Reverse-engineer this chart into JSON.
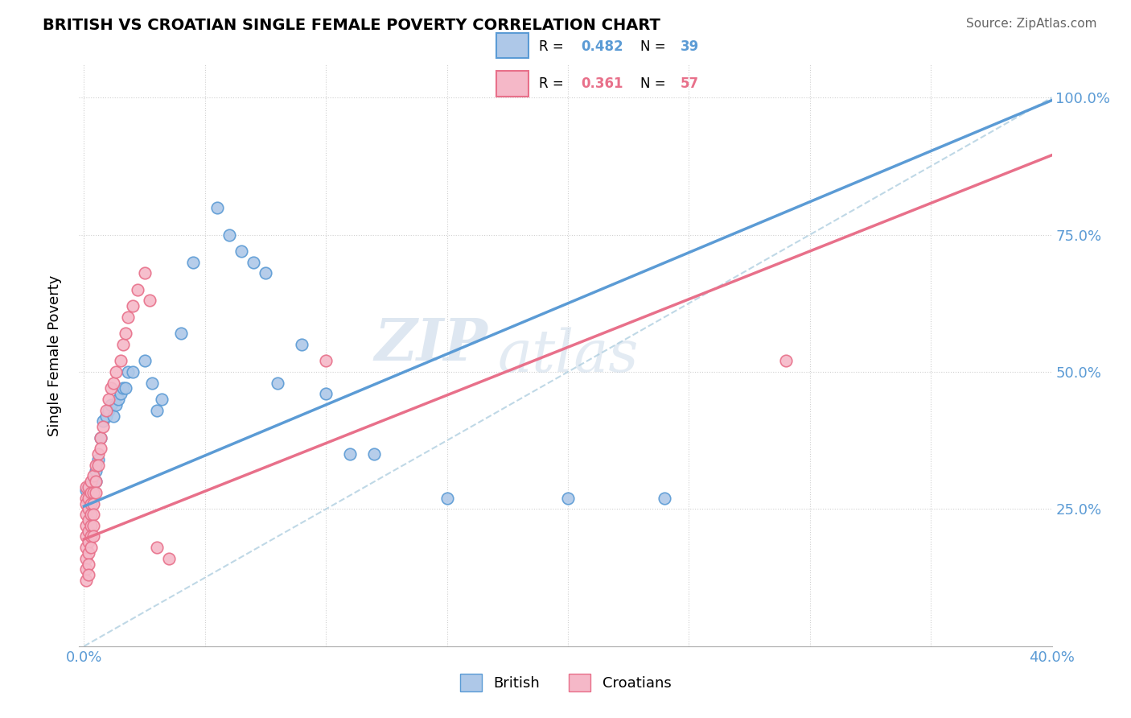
{
  "title": "BRITISH VS CROATIAN SINGLE FEMALE POVERTY CORRELATION CHART",
  "source": "Source: ZipAtlas.com",
  "ylabel": "Single Female Poverty",
  "british_color": "#aec8e8",
  "croatian_color": "#f5b8c8",
  "british_line_color": "#5b9bd5",
  "croatian_line_color": "#e8708a",
  "diagonal_color": "#b0cfe0",
  "watermark_zip": "ZIP",
  "watermark_atlas": "atlas",
  "british_r": "0.482",
  "british_n": "39",
  "croatian_r": "0.361",
  "croatian_n": "57",
  "british_points": [
    [
      0.001,
      0.285
    ],
    [
      0.002,
      0.285
    ],
    [
      0.003,
      0.29
    ],
    [
      0.004,
      0.3
    ],
    [
      0.005,
      0.3
    ],
    [
      0.005,
      0.32
    ],
    [
      0.006,
      0.34
    ],
    [
      0.007,
      0.38
    ],
    [
      0.008,
      0.41
    ],
    [
      0.009,
      0.42
    ],
    [
      0.01,
      0.43
    ],
    [
      0.011,
      0.44
    ],
    [
      0.012,
      0.42
    ],
    [
      0.013,
      0.44
    ],
    [
      0.014,
      0.45
    ],
    [
      0.015,
      0.46
    ],
    [
      0.016,
      0.47
    ],
    [
      0.017,
      0.47
    ],
    [
      0.018,
      0.5
    ],
    [
      0.02,
      0.5
    ],
    [
      0.025,
      0.52
    ],
    [
      0.028,
      0.48
    ],
    [
      0.03,
      0.43
    ],
    [
      0.032,
      0.45
    ],
    [
      0.04,
      0.57
    ],
    [
      0.045,
      0.7
    ],
    [
      0.055,
      0.8
    ],
    [
      0.06,
      0.75
    ],
    [
      0.065,
      0.72
    ],
    [
      0.07,
      0.7
    ],
    [
      0.075,
      0.68
    ],
    [
      0.08,
      0.48
    ],
    [
      0.09,
      0.55
    ],
    [
      0.1,
      0.46
    ],
    [
      0.11,
      0.35
    ],
    [
      0.12,
      0.35
    ],
    [
      0.15,
      0.27
    ],
    [
      0.2,
      0.27
    ],
    [
      0.24,
      0.27
    ]
  ],
  "croatian_points": [
    [
      0.001,
      0.29
    ],
    [
      0.001,
      0.27
    ],
    [
      0.001,
      0.26
    ],
    [
      0.001,
      0.24
    ],
    [
      0.001,
      0.22
    ],
    [
      0.001,
      0.2
    ],
    [
      0.001,
      0.18
    ],
    [
      0.001,
      0.16
    ],
    [
      0.001,
      0.14
    ],
    [
      0.001,
      0.12
    ],
    [
      0.002,
      0.29
    ],
    [
      0.002,
      0.27
    ],
    [
      0.002,
      0.25
    ],
    [
      0.002,
      0.23
    ],
    [
      0.002,
      0.21
    ],
    [
      0.002,
      0.19
    ],
    [
      0.002,
      0.17
    ],
    [
      0.002,
      0.15
    ],
    [
      0.002,
      0.13
    ],
    [
      0.003,
      0.3
    ],
    [
      0.003,
      0.28
    ],
    [
      0.003,
      0.26
    ],
    [
      0.003,
      0.24
    ],
    [
      0.003,
      0.22
    ],
    [
      0.003,
      0.2
    ],
    [
      0.003,
      0.18
    ],
    [
      0.004,
      0.31
    ],
    [
      0.004,
      0.28
    ],
    [
      0.004,
      0.26
    ],
    [
      0.004,
      0.24
    ],
    [
      0.004,
      0.22
    ],
    [
      0.004,
      0.2
    ],
    [
      0.005,
      0.33
    ],
    [
      0.005,
      0.3
    ],
    [
      0.005,
      0.28
    ],
    [
      0.006,
      0.35
    ],
    [
      0.006,
      0.33
    ],
    [
      0.007,
      0.38
    ],
    [
      0.007,
      0.36
    ],
    [
      0.008,
      0.4
    ],
    [
      0.009,
      0.43
    ],
    [
      0.01,
      0.45
    ],
    [
      0.011,
      0.47
    ],
    [
      0.012,
      0.48
    ],
    [
      0.013,
      0.5
    ],
    [
      0.015,
      0.52
    ],
    [
      0.016,
      0.55
    ],
    [
      0.017,
      0.57
    ],
    [
      0.018,
      0.6
    ],
    [
      0.02,
      0.62
    ],
    [
      0.022,
      0.65
    ],
    [
      0.025,
      0.68
    ],
    [
      0.027,
      0.63
    ],
    [
      0.03,
      0.18
    ],
    [
      0.035,
      0.16
    ],
    [
      0.1,
      0.52
    ],
    [
      0.29,
      0.52
    ]
  ]
}
